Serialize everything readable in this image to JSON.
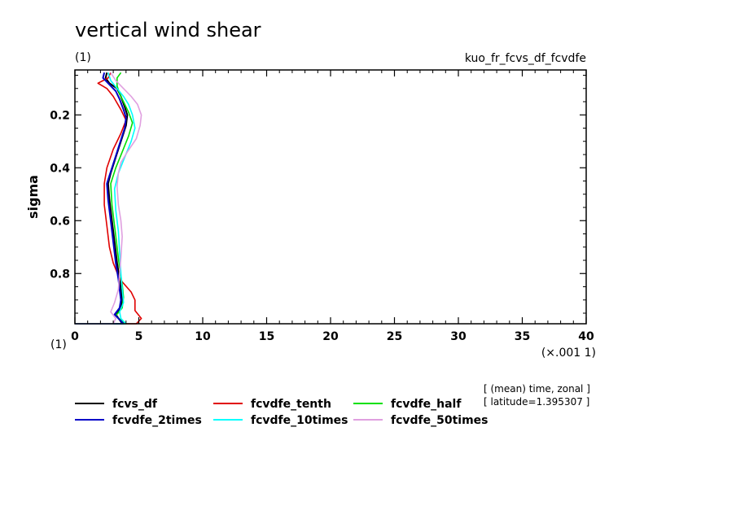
{
  "chart_data": {
    "type": "line",
    "title": "vertical wind shear",
    "subtitle_left": "(1)",
    "subtitle_right": "kuo_fr_fcvs_df_fcvdfe",
    "xlabel_unit": "(×.001 1)",
    "x_corner_label": "(1)",
    "ylabel": "sigma",
    "xlim": [
      0,
      40
    ],
    "ylim": [
      0.03,
      0.99
    ],
    "y_inverted": true,
    "x_ticks": [
      "0",
      "5",
      "10",
      "15",
      "20",
      "25",
      "30",
      "35",
      "40"
    ],
    "y_ticks": [
      "0.2",
      "0.4",
      "0.6",
      "0.8"
    ],
    "grid": false,
    "legend_position": "bottom-left",
    "annotation": [
      "[ (mean) time, zonal ]",
      "[ latitude=1.395307 ]"
    ],
    "series": [
      {
        "name": "fcvs_df",
        "color": "#000000",
        "values": [
          [
            2.5,
            0.04
          ],
          [
            2.4,
            0.06
          ],
          [
            2.7,
            0.08
          ],
          [
            3.3,
            0.1
          ],
          [
            3.6,
            0.13
          ],
          [
            3.9,
            0.17
          ],
          [
            4.1,
            0.2
          ],
          [
            4.0,
            0.24
          ],
          [
            3.6,
            0.3
          ],
          [
            3.2,
            0.36
          ],
          [
            2.8,
            0.42
          ],
          [
            2.6,
            0.46
          ],
          [
            2.7,
            0.52
          ],
          [
            2.9,
            0.6
          ],
          [
            3.1,
            0.68
          ],
          [
            3.3,
            0.76
          ],
          [
            3.5,
            0.82
          ],
          [
            3.6,
            0.86
          ],
          [
            3.7,
            0.9
          ],
          [
            3.6,
            0.93
          ],
          [
            3.2,
            0.955
          ],
          [
            3.5,
            0.975
          ],
          [
            3.7,
            0.99
          ],
          [
            3.0,
            0.99
          ],
          [
            1.0,
            0.99
          ],
          [
            0.0,
            0.99
          ]
        ]
      },
      {
        "name": "fcvdfe_tenth",
        "color": "#e00000",
        "values": [
          [
            2.8,
            0.04
          ],
          [
            2.6,
            0.06
          ],
          [
            1.8,
            0.08
          ],
          [
            2.5,
            0.1
          ],
          [
            3.0,
            0.13
          ],
          [
            3.6,
            0.18
          ],
          [
            4.0,
            0.22
          ],
          [
            3.6,
            0.27
          ],
          [
            3.0,
            0.33
          ],
          [
            2.5,
            0.4
          ],
          [
            2.3,
            0.46
          ],
          [
            2.3,
            0.54
          ],
          [
            2.5,
            0.62
          ],
          [
            2.7,
            0.7
          ],
          [
            3.0,
            0.76
          ],
          [
            3.5,
            0.82
          ],
          [
            4.4,
            0.87
          ],
          [
            4.7,
            0.9
          ],
          [
            4.7,
            0.94
          ],
          [
            5.2,
            0.97
          ],
          [
            4.8,
            0.99
          ],
          [
            2.0,
            0.99
          ],
          [
            0.0,
            0.99
          ]
        ]
      },
      {
        "name": "fcvdfe_half",
        "color": "#00e000",
        "values": [
          [
            3.6,
            0.04
          ],
          [
            3.3,
            0.06
          ],
          [
            3.3,
            0.09
          ],
          [
            3.5,
            0.12
          ],
          [
            3.8,
            0.15
          ],
          [
            4.2,
            0.19
          ],
          [
            4.5,
            0.23
          ],
          [
            4.2,
            0.28
          ],
          [
            3.7,
            0.34
          ],
          [
            3.2,
            0.4
          ],
          [
            2.8,
            0.46
          ],
          [
            2.9,
            0.54
          ],
          [
            3.1,
            0.62
          ],
          [
            3.3,
            0.7
          ],
          [
            3.5,
            0.78
          ],
          [
            3.7,
            0.84
          ],
          [
            3.8,
            0.89
          ],
          [
            3.7,
            0.93
          ],
          [
            3.2,
            0.96
          ],
          [
            3.7,
            0.98
          ],
          [
            4.0,
            0.99
          ],
          [
            1.5,
            0.99
          ],
          [
            0.0,
            0.99
          ]
        ]
      },
      {
        "name": "fcvdfe_2times",
        "color": "#0000c8",
        "values": [
          [
            2.3,
            0.04
          ],
          [
            2.2,
            0.06
          ],
          [
            2.6,
            0.08
          ],
          [
            3.2,
            0.11
          ],
          [
            3.5,
            0.14
          ],
          [
            3.8,
            0.18
          ],
          [
            4.0,
            0.21
          ],
          [
            3.9,
            0.25
          ],
          [
            3.5,
            0.31
          ],
          [
            3.1,
            0.37
          ],
          [
            2.7,
            0.43
          ],
          [
            2.5,
            0.46
          ],
          [
            2.6,
            0.52
          ],
          [
            2.8,
            0.6
          ],
          [
            3.0,
            0.68
          ],
          [
            3.2,
            0.76
          ],
          [
            3.4,
            0.82
          ],
          [
            3.5,
            0.86
          ],
          [
            3.6,
            0.9
          ],
          [
            3.5,
            0.93
          ],
          [
            3.1,
            0.955
          ],
          [
            3.5,
            0.975
          ],
          [
            3.8,
            0.99
          ],
          [
            1.2,
            0.99
          ],
          [
            0.0,
            0.99
          ]
        ]
      },
      {
        "name": "fcvdfe_10times",
        "color": "#00ffff",
        "values": [
          [
            2.6,
            0.04
          ],
          [
            2.8,
            0.07
          ],
          [
            3.3,
            0.1
          ],
          [
            3.8,
            0.13
          ],
          [
            4.2,
            0.16
          ],
          [
            4.5,
            0.2
          ],
          [
            4.7,
            0.25
          ],
          [
            4.4,
            0.3
          ],
          [
            3.9,
            0.36
          ],
          [
            3.4,
            0.42
          ],
          [
            3.1,
            0.48
          ],
          [
            3.2,
            0.56
          ],
          [
            3.4,
            0.64
          ],
          [
            3.5,
            0.72
          ],
          [
            3.6,
            0.8
          ],
          [
            3.7,
            0.86
          ],
          [
            3.8,
            0.91
          ],
          [
            3.5,
            0.945
          ],
          [
            3.6,
            0.97
          ],
          [
            4.0,
            0.99
          ],
          [
            1.5,
            0.99
          ],
          [
            0.0,
            0.99
          ]
        ]
      },
      {
        "name": "fcvdfe_50times",
        "color": "#e0a0e0",
        "values": [
          [
            2.8,
            0.04
          ],
          [
            3.2,
            0.07
          ],
          [
            3.8,
            0.1
          ],
          [
            4.4,
            0.13
          ],
          [
            4.9,
            0.16
          ],
          [
            5.2,
            0.2
          ],
          [
            5.1,
            0.24
          ],
          [
            4.8,
            0.29
          ],
          [
            4.1,
            0.34
          ],
          [
            3.6,
            0.38
          ],
          [
            3.4,
            0.42
          ],
          [
            3.3,
            0.47
          ],
          [
            3.4,
            0.54
          ],
          [
            3.6,
            0.6
          ],
          [
            3.7,
            0.66
          ],
          [
            3.6,
            0.74
          ],
          [
            3.5,
            0.8
          ],
          [
            3.4,
            0.86
          ],
          [
            3.1,
            0.91
          ],
          [
            2.8,
            0.945
          ],
          [
            3.2,
            0.97
          ],
          [
            3.0,
            0.99
          ],
          [
            1.0,
            0.99
          ],
          [
            0.0,
            0.99
          ]
        ]
      }
    ]
  }
}
